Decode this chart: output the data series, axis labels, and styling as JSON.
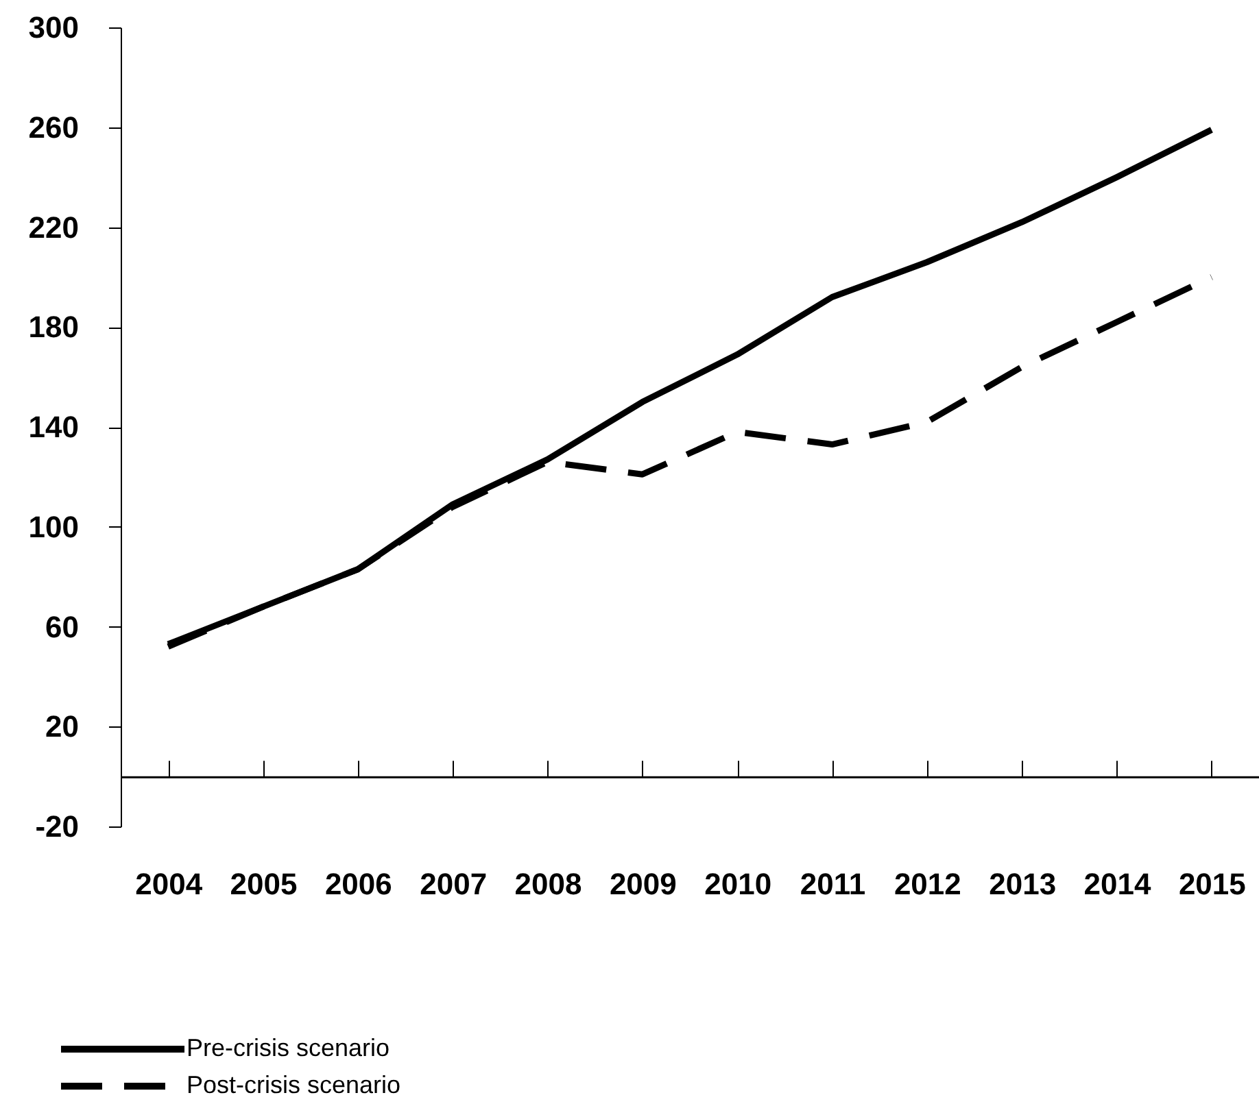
{
  "chart_data": {
    "type": "line",
    "categories": [
      "2004",
      "2005",
      "2006",
      "2007",
      "2008",
      "2009",
      "2010",
      "2011",
      "2012",
      "2013",
      "2014",
      "2015"
    ],
    "series": [
      {
        "name": "Pre-crisis scenario",
        "color": "#000000",
        "line_style": "solid",
        "values": [
          53,
          68,
          83,
          109,
          127,
          150,
          169,
          192,
          206,
          222,
          240,
          259
        ]
      },
      {
        "name": "Post-crisis scenario",
        "color": "#000000",
        "line_style": "dashed",
        "values": [
          52,
          68,
          83,
          108,
          126,
          121,
          138,
          133,
          142,
          164,
          182,
          200
        ]
      }
    ],
    "ylim": [
      -20,
      300
    ],
    "yticks": [
      -20,
      20,
      60,
      100,
      140,
      180,
      220,
      260,
      300
    ],
    "grid": false,
    "legend": "bottom left"
  }
}
